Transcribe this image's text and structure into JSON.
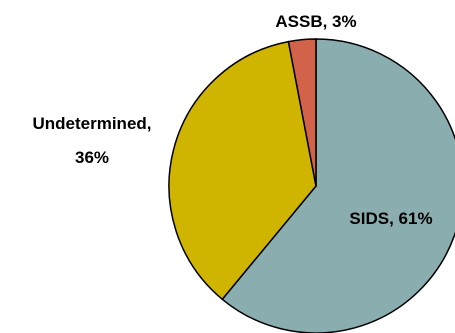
{
  "chart_data": {
    "type": "pie",
    "slices": [
      {
        "label": "SIDS",
        "value": 61,
        "display": "SIDS, 61%",
        "color": "#8aaeb0"
      },
      {
        "label": "Undetermined",
        "value": 36,
        "display_line1": "Undetermined,",
        "display_line2": "36%",
        "color": "#cfb400"
      },
      {
        "label": "ASSB",
        "value": 3,
        "display": "ASSB, 3%",
        "color": "#d2624a"
      }
    ],
    "stroke_color": "#000000",
    "start_angle_deg": 0,
    "direction": "clockwise",
    "legend": "none"
  }
}
